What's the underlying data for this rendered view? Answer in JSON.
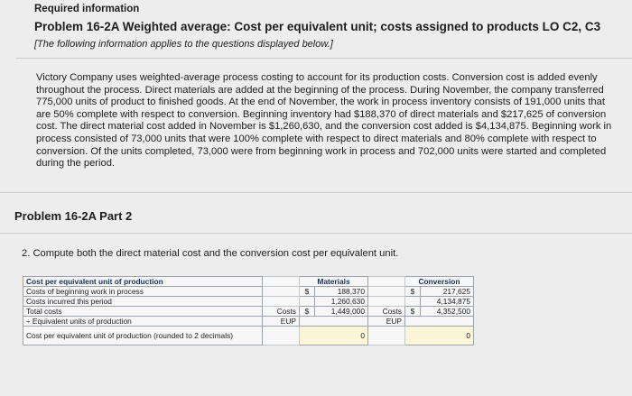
{
  "header": {
    "required": "Required information",
    "problem_title": "Problem 16-2A Weighted average: Cost per equivalent unit; costs assigned to products LO C2, C3",
    "note": "[The following information applies to the questions displayed below.]"
  },
  "paragraph": "Victory Company uses weighted-average process costing to account for its production costs. Conversion cost is added evenly throughout the process. Direct materials are added at the beginning of the process. During November, the company transferred 775,000 units of product to finished goods. At the end of November, the work in process inventory consists of 191,000 units that are 50% complete with respect to conversion. Beginning inventory had $188,370 of direct materials and $217,625 of conversion cost. The direct material cost added in November is $1,260,630, and the conversion cost added is $4,134,875. Beginning work in process consisted of 73,000 units that were 100% complete with respect to direct materials and 80% complete with respect to conversion. Of the units completed, 73,000 were from beginning work in process and 702,000 units were started and completed during the period.",
  "part": {
    "title": "Problem 16-2A Part 2"
  },
  "question": "2. Compute both the direct material cost and the conversion cost per equivalent unit.",
  "worksheet": {
    "header_label": "Cost per equivalent unit of production",
    "materials_header": "Materials",
    "conversion_header": "Conversion",
    "rows": {
      "beginning_label": "Costs of beginning work in process",
      "incurred_label": "Costs incurred this period",
      "total_label": "Total costs",
      "eup_label": "÷ Equivalent units of production",
      "cpeu_label": "Cost per equivalent unit of production (rounded to 2 decimals)"
    },
    "unit_labels": {
      "costs": "Costs",
      "eup": "EUP"
    },
    "currency": "$",
    "materials": {
      "beginning": "188,370",
      "incurred": "1,260,630",
      "total": "1,449,000",
      "eup": "",
      "cpeu": "0"
    },
    "conversion": {
      "beginning": "217,625",
      "incurred": "4,134,875",
      "total": "4,352,500",
      "eup": "",
      "cpeu": "0"
    }
  }
}
